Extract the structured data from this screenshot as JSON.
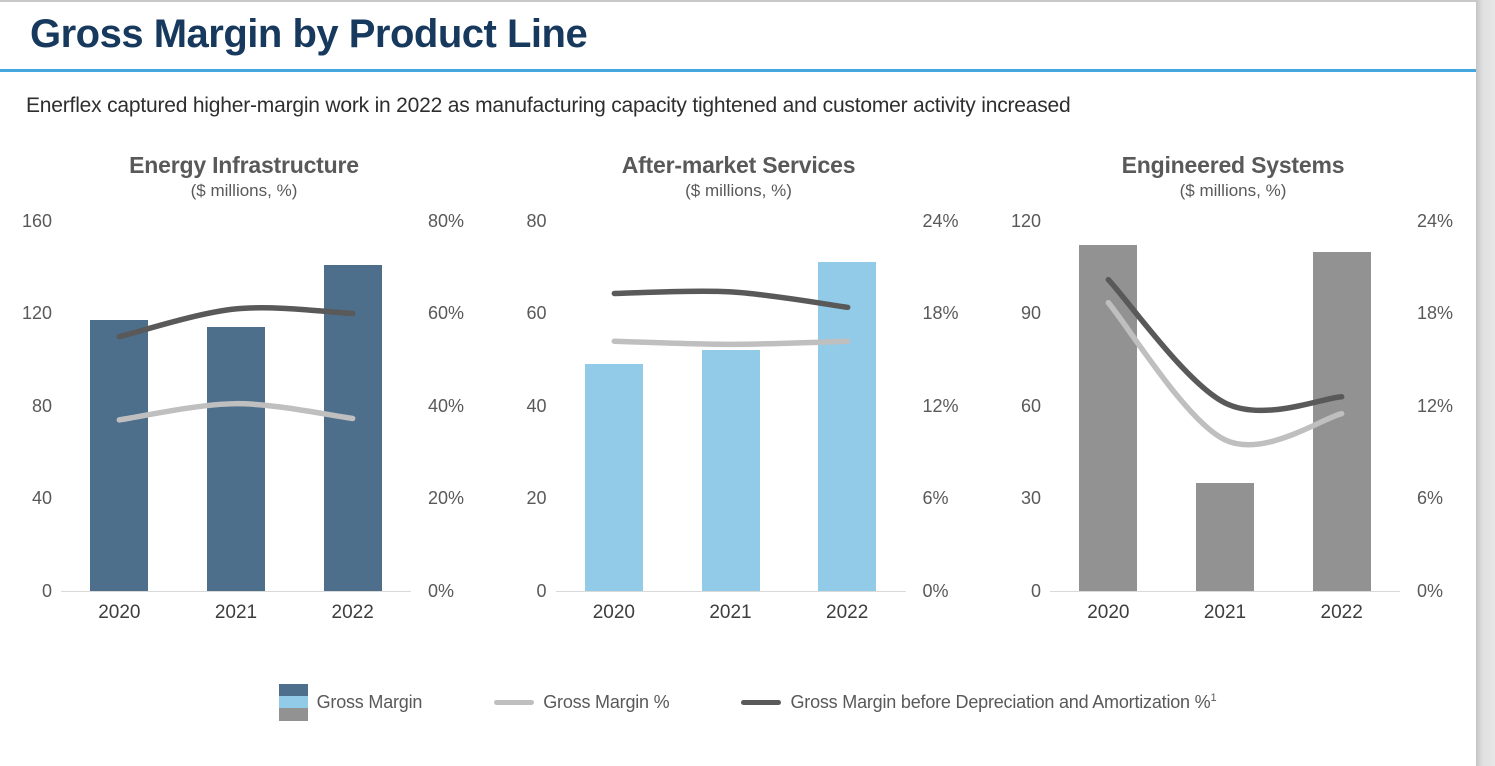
{
  "page": {
    "title": "Gross Margin by Product Line",
    "subtitle": "Enerflex captured higher-margin work in 2022 as manufacturing capacity tightened and customer activity increased",
    "title_color": "#17395E",
    "accent_rule_color": "#45A7DD"
  },
  "legend": {
    "items": [
      {
        "type": "bar-swatch",
        "label": "Gross Margin",
        "colors": [
          "#4D6F8C",
          "#92CBE8",
          "#929292"
        ]
      },
      {
        "type": "line",
        "label": "Gross Margin %",
        "color": "#BFBFBF"
      },
      {
        "type": "line",
        "label": "Gross Margin before Depreciation and Amortization %",
        "footnote": "1",
        "color": "#595959"
      }
    ]
  },
  "chart_data": [
    {
      "type": "bar+line",
      "title": "Energy Infrastructure",
      "subtitle": "($ millions, %)",
      "categories": [
        "2020",
        "2021",
        "2022"
      ],
      "bar_color": "#4D6F8C",
      "left_axis": {
        "ticks": [
          "160",
          "120",
          "80",
          "40",
          "0"
        ],
        "max": 160
      },
      "right_axis": {
        "ticks": [
          "80%",
          "60%",
          "40%",
          "20%",
          "0%"
        ],
        "max": 80
      },
      "series": [
        {
          "name": "Gross Margin",
          "type": "bar",
          "values": [
            117,
            114,
            141
          ]
        },
        {
          "name": "Gross Margin %",
          "type": "line",
          "color": "#BFBFBF",
          "values": [
            37,
            40.5,
            37.3
          ]
        },
        {
          "name": "Gross Margin before Depreciation and Amortization %",
          "type": "line",
          "color": "#595959",
          "values": [
            55,
            61,
            60
          ]
        }
      ]
    },
    {
      "type": "bar+line",
      "title": "After-market Services",
      "subtitle": "($ millions, %)",
      "categories": [
        "2020",
        "2021",
        "2022"
      ],
      "bar_color": "#92CBE8",
      "left_axis": {
        "ticks": [
          "80",
          "60",
          "40",
          "20",
          "0"
        ],
        "max": 80
      },
      "right_axis": {
        "ticks": [
          "24%",
          "18%",
          "12%",
          "6%",
          "0%"
        ],
        "max": 24
      },
      "series": [
        {
          "name": "Gross Margin",
          "type": "bar",
          "values": [
            49,
            52,
            71
          ]
        },
        {
          "name": "Gross Margin %",
          "type": "line",
          "color": "#BFBFBF",
          "values": [
            16.2,
            16.0,
            16.2
          ]
        },
        {
          "name": "Gross Margin before Depreciation and Amortization %",
          "type": "line",
          "color": "#595959",
          "values": [
            19.3,
            19.4,
            18.4
          ]
        }
      ]
    },
    {
      "type": "bar+line",
      "title": "Engineered Systems",
      "subtitle": "($ millions, %)",
      "categories": [
        "2020",
        "2021",
        "2022"
      ],
      "bar_color": "#929292",
      "left_axis": {
        "ticks": [
          "120",
          "90",
          "60",
          "30",
          "0"
        ],
        "max": 120
      },
      "right_axis": {
        "ticks": [
          "24%",
          "18%",
          "12%",
          "6%",
          "0%"
        ],
        "max": 24
      },
      "series": [
        {
          "name": "Gross Margin",
          "type": "bar",
          "values": [
            112,
            35,
            110
          ]
        },
        {
          "name": "Gross Margin %",
          "type": "line",
          "color": "#BFBFBF",
          "values": [
            18.7,
            9.8,
            11.5
          ]
        },
        {
          "name": "Gross Margin before Depreciation and Amortization %",
          "type": "line",
          "color": "#595959",
          "values": [
            20.2,
            12.2,
            12.6
          ]
        }
      ]
    }
  ]
}
